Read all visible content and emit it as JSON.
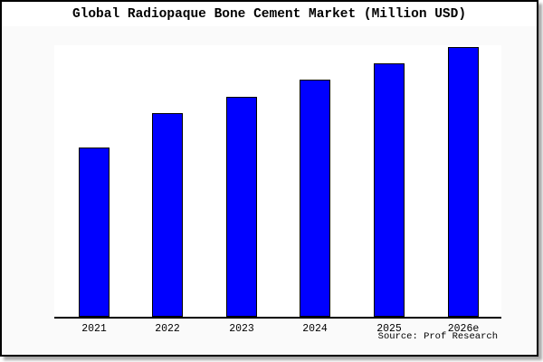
{
  "chart_data": {
    "type": "bar",
    "title": "Global Radiopaque Bone Cement Market (Million USD)",
    "categories": [
      "2021",
      "2022",
      "2023",
      "2024",
      "2025",
      "2026e"
    ],
    "values": [
      188,
      226,
      244,
      263,
      281,
      299
    ],
    "xlabel": "",
    "ylabel": "",
    "ylim": [
      0,
      301
    ],
    "y_axis_shown": false,
    "grid": false,
    "legend": false,
    "bar_color": "#0000ff",
    "bar_border_color": "#000000"
  },
  "source_note": "Source: Prof Research",
  "colors": {
    "figure_bg": "#fafafa",
    "plot_bg": "#ffffff",
    "title_band_bg": "#ffffff",
    "frame_border": "#000000",
    "text": "#000000"
  }
}
